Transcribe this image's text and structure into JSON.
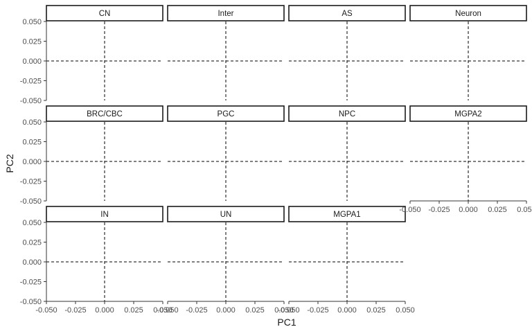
{
  "chart_data": {
    "type": "scatter",
    "title": "",
    "xlabel": "PC1",
    "ylabel": "PC2",
    "xlim": [
      -0.05,
      0.05
    ],
    "ylim": [
      -0.05,
      0.05
    ],
    "x_ticks": [
      "-0.050",
      "-0.025",
      "0.000",
      "0.025",
      "0.050"
    ],
    "y_ticks": [
      "0.050",
      "0.025",
      "0.000",
      "-0.025",
      "-0.050"
    ],
    "x_tick_values": [
      -0.05,
      -0.025,
      0,
      0.025,
      0.05
    ],
    "y_tick_values": [
      0.05,
      0.025,
      0,
      -0.025,
      -0.05
    ],
    "reference_lines": {
      "x": 0,
      "y": 0,
      "style": "dashed"
    },
    "grid": false,
    "facets": [
      {
        "label": "CN",
        "row": 0,
        "col": 0,
        "points": []
      },
      {
        "label": "Inter",
        "row": 0,
        "col": 1,
        "points": []
      },
      {
        "label": "AS",
        "row": 0,
        "col": 2,
        "points": []
      },
      {
        "label": "Neuron",
        "row": 0,
        "col": 3,
        "points": []
      },
      {
        "label": "BRC/CBC",
        "row": 1,
        "col": 0,
        "points": []
      },
      {
        "label": "PGC",
        "row": 1,
        "col": 1,
        "points": []
      },
      {
        "label": "NPC",
        "row": 1,
        "col": 2,
        "points": []
      },
      {
        "label": "MGPA2",
        "row": 1,
        "col": 3,
        "points": []
      },
      {
        "label": "IN",
        "row": 2,
        "col": 0,
        "points": []
      },
      {
        "label": "UN",
        "row": 2,
        "col": 1,
        "points": []
      },
      {
        "label": "MGPA1",
        "row": 2,
        "col": 2,
        "points": []
      }
    ]
  }
}
